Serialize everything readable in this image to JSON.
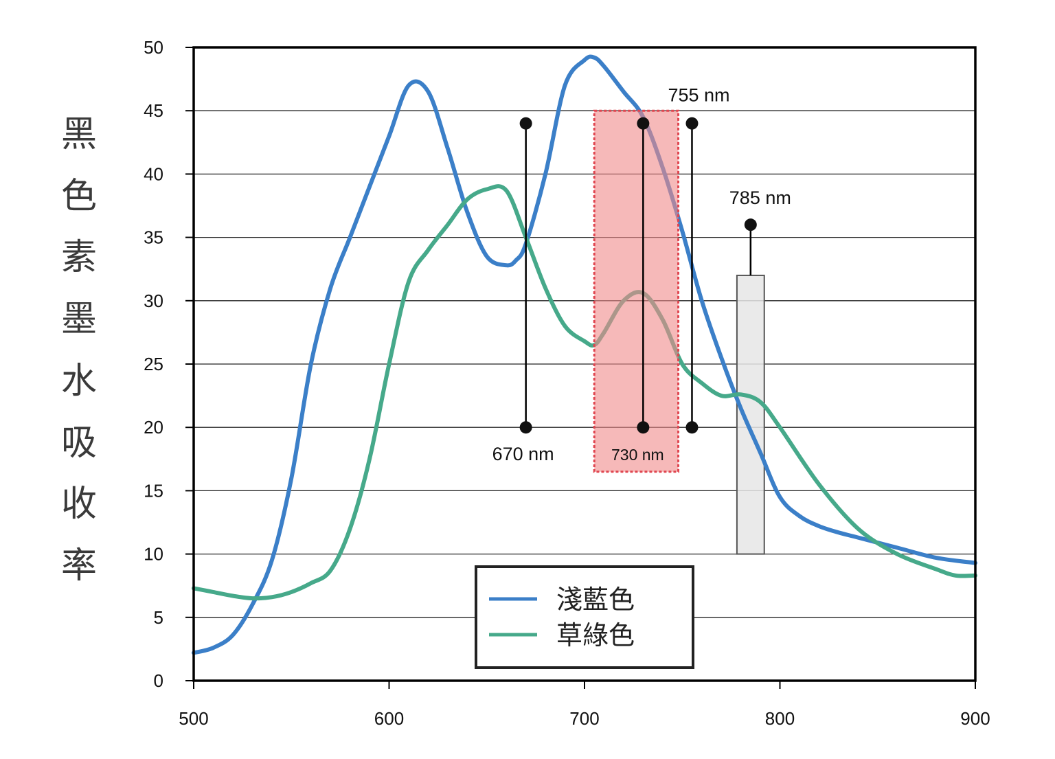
{
  "chart_data": {
    "type": "line",
    "title": "",
    "xlabel": "",
    "ylabel": "黑色素墨水吸收率",
    "xlim": [
      500,
      900
    ],
    "ylim": [
      0,
      50
    ],
    "x_ticks": [
      "500",
      "600",
      "700",
      "800",
      "900"
    ],
    "y_ticks": [
      "0",
      "5",
      "10",
      "15",
      "20",
      "25",
      "30",
      "35",
      "40",
      "45",
      "50"
    ],
    "grid": "horizontal",
    "legend_position": "bottom-center",
    "series": [
      {
        "name": "淺藍色",
        "color": "#3b7fc8",
        "points": [
          [
            500,
            2.2
          ],
          [
            510,
            2.6
          ],
          [
            520,
            3.6
          ],
          [
            530,
            6.0
          ],
          [
            540,
            9.5
          ],
          [
            550,
            16
          ],
          [
            560,
            25
          ],
          [
            570,
            31
          ],
          [
            580,
            35
          ],
          [
            590,
            39
          ],
          [
            600,
            43
          ],
          [
            610,
            47
          ],
          [
            620,
            46.5
          ],
          [
            630,
            42
          ],
          [
            640,
            37
          ],
          [
            650,
            33.5
          ],
          [
            660,
            32.8
          ],
          [
            665,
            33.2
          ],
          [
            670,
            34.5
          ],
          [
            680,
            40
          ],
          [
            690,
            47
          ],
          [
            700,
            49
          ],
          [
            705,
            49.2
          ],
          [
            710,
            48.5
          ],
          [
            720,
            46.5
          ],
          [
            730,
            44.5
          ],
          [
            740,
            40.5
          ],
          [
            750,
            35.5
          ],
          [
            760,
            30
          ],
          [
            770,
            25.5
          ],
          [
            780,
            21.5
          ],
          [
            790,
            18
          ],
          [
            800,
            14.5
          ],
          [
            810,
            13
          ],
          [
            820,
            12.2
          ],
          [
            830,
            11.7
          ],
          [
            840,
            11.3
          ],
          [
            860,
            10.5
          ],
          [
            880,
            9.7
          ],
          [
            900,
            9.3
          ]
        ]
      },
      {
        "name": "草綠色",
        "color": "#46a98a",
        "points": [
          [
            500,
            7.3
          ],
          [
            510,
            7.0
          ],
          [
            520,
            6.7
          ],
          [
            530,
            6.5
          ],
          [
            540,
            6.6
          ],
          [
            550,
            7.0
          ],
          [
            560,
            7.7
          ],
          [
            570,
            8.7
          ],
          [
            580,
            12
          ],
          [
            590,
            17.5
          ],
          [
            600,
            25
          ],
          [
            610,
            31.5
          ],
          [
            620,
            34
          ],
          [
            630,
            36
          ],
          [
            640,
            38
          ],
          [
            650,
            38.8
          ],
          [
            660,
            38.7
          ],
          [
            670,
            35
          ],
          [
            680,
            31
          ],
          [
            690,
            28
          ],
          [
            700,
            26.8
          ],
          [
            705,
            26.5
          ],
          [
            710,
            27.5
          ],
          [
            720,
            30
          ],
          [
            730,
            30.6
          ],
          [
            740,
            28.5
          ],
          [
            750,
            25
          ],
          [
            760,
            23.5
          ],
          [
            770,
            22.5
          ],
          [
            780,
            22.6
          ],
          [
            790,
            22
          ],
          [
            800,
            20
          ],
          [
            820,
            15.5
          ],
          [
            840,
            12
          ],
          [
            860,
            10
          ],
          [
            880,
            8.8
          ],
          [
            890,
            8.3
          ],
          [
            900,
            8.3
          ]
        ]
      }
    ],
    "annotations": [
      {
        "label": "670 nm",
        "x": 670,
        "y_top": 44,
        "y_bottom": 20
      },
      {
        "label": "730 nm",
        "x": 730,
        "y_top": 44,
        "y_bottom": 20,
        "band": [
          705,
          748
        ],
        "band_y": [
          16.5,
          45
        ],
        "band_color": "#f08a8a"
      },
      {
        "label": "755 nm",
        "x": 755,
        "y_top": 44,
        "y_bottom": 20
      },
      {
        "label": "785 nm",
        "x": 785,
        "y_top": 36,
        "y_bottom": 32,
        "band": [
          778,
          792
        ],
        "band_y": [
          10,
          32
        ],
        "band_color": "#e6e6e6"
      }
    ]
  }
}
